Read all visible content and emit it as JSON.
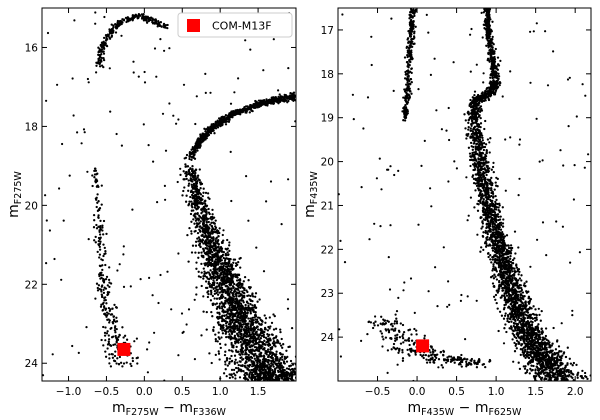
{
  "chart_data": [
    {
      "type": "scatter",
      "xlabel": {
        "main": "m",
        "sub1": "F275W",
        "minus": " − ",
        "main2": "m",
        "sub2": "F336W"
      },
      "ylabel": {
        "main": "m",
        "sub": "F275W"
      },
      "xlim": [
        -1.35,
        2.0
      ],
      "ylim": [
        24.45,
        15.0
      ],
      "y_inverted": true,
      "xticks": [
        -1.0,
        -0.5,
        0.0,
        0.5,
        1.0,
        1.5
      ],
      "xtick_labels": [
        "−1.0",
        "−0.5",
        "0.0",
        "0.5",
        "1.0",
        "1.5"
      ],
      "yticks": [
        16,
        18,
        20,
        22,
        24
      ],
      "ytick_labels": [
        "16",
        "18",
        "20",
        "22",
        "24"
      ],
      "legend": {
        "label": "COM-M13F",
        "placement": "top-right"
      },
      "highlight": {
        "name": "COM-M13F",
        "x": -0.27,
        "y": 23.65,
        "color": "#ff0000"
      },
      "series": [
        {
          "name": "",
          "role": "main-sequence",
          "color": "#000000",
          "points": [
            [
              0.6,
              19.0
            ],
            [
              0.7,
              19.8
            ],
            [
              0.8,
              20.5
            ],
            [
              0.9,
              21.1
            ],
            [
              1.0,
              21.6
            ],
            [
              1.1,
              22.1
            ],
            [
              1.2,
              22.6
            ],
            [
              1.3,
              23.0
            ],
            [
              1.4,
              23.4
            ],
            [
              1.5,
              23.8
            ],
            [
              1.6,
              24.2
            ],
            [
              1.7,
              24.45
            ]
          ],
          "width": [
            0.12,
            0.14,
            0.18,
            0.22,
            0.26,
            0.3,
            0.34,
            0.38,
            0.42,
            0.46,
            0.5,
            0.55
          ]
        },
        {
          "name": "",
          "role": "subgiant-branch",
          "color": "#000000",
          "points": [
            [
              0.6,
              18.8
            ],
            [
              0.75,
              18.3
            ],
            [
              0.95,
              17.95
            ],
            [
              1.2,
              17.65
            ],
            [
              1.5,
              17.45
            ],
            [
              1.8,
              17.3
            ],
            [
              2.0,
              17.25
            ]
          ],
          "width": [
            0.06,
            0.06,
            0.05,
            0.05,
            0.05,
            0.05,
            0.05
          ]
        },
        {
          "name": "",
          "role": "horizontal-branch",
          "color": "#000000",
          "points": [
            [
              -0.6,
              16.5
            ],
            [
              -0.55,
              16.0
            ],
            [
              -0.45,
              15.6
            ],
            [
              -0.3,
              15.35
            ],
            [
              -0.1,
              15.2
            ],
            [
              0.1,
              15.3
            ],
            [
              0.3,
              15.5
            ]
          ],
          "width": [
            0.05,
            0.05,
            0.05,
            0.04,
            0.04,
            0.04,
            0.04
          ]
        },
        {
          "name": "",
          "role": "white-dwarf-sequence",
          "color": "#000000",
          "points": [
            [
              -0.65,
              19.0
            ],
            [
              -0.6,
              20.5
            ],
            [
              -0.55,
              21.8
            ],
            [
              -0.5,
              22.6
            ],
            [
              -0.42,
              23.1
            ],
            [
              -0.35,
              23.6
            ],
            [
              -0.25,
              24.1
            ]
          ],
          "width": [
            0.05,
            0.07,
            0.09,
            0.12,
            0.16,
            0.22,
            0.28
          ]
        }
      ]
    },
    {
      "type": "scatter",
      "xlabel": {
        "main": "m",
        "sub1": "F435W",
        "minus": " − ",
        "main2": "m",
        "sub2": "F625W"
      },
      "ylabel": {
        "main": "m",
        "sub": "F435W"
      },
      "xlim": [
        -1.0,
        2.2
      ],
      "ylim": [
        25.0,
        16.5
      ],
      "y_inverted": true,
      "xticks": [
        -0.5,
        0.0,
        0.5,
        1.0,
        1.5,
        2.0
      ],
      "xtick_labels": [
        "−0.5",
        "0.0",
        "0.5",
        "1.0",
        "1.5",
        "2.0"
      ],
      "yticks": [
        17,
        18,
        19,
        20,
        21,
        22,
        23,
        24
      ],
      "ytick_labels": [
        "17",
        "18",
        "19",
        "20",
        "21",
        "22",
        "23",
        "24"
      ],
      "highlight": {
        "name": "COM-M13F",
        "x": 0.07,
        "y": 24.2,
        "color": "#ff0000"
      },
      "series": [
        {
          "name": "",
          "role": "main-sequence",
          "color": "#000000",
          "points": [
            [
              0.72,
              19.0
            ],
            [
              0.78,
              19.8
            ],
            [
              0.85,
              20.5
            ],
            [
              0.93,
              21.2
            ],
            [
              1.02,
              21.9
            ],
            [
              1.12,
              22.5
            ],
            [
              1.22,
              23.1
            ],
            [
              1.35,
              23.7
            ],
            [
              1.5,
              24.2
            ],
            [
              1.65,
              24.6
            ],
            [
              1.8,
              25.0
            ]
          ],
          "width": [
            0.12,
            0.13,
            0.14,
            0.15,
            0.16,
            0.18,
            0.2,
            0.24,
            0.28,
            0.32,
            0.36
          ]
        },
        {
          "name": "",
          "role": "red-giant-branch",
          "color": "#000000",
          "points": [
            [
              0.72,
              19.0
            ],
            [
              0.75,
              18.6
            ],
            [
              0.9,
              18.45
            ],
            [
              1.0,
              18.2
            ],
            [
              0.95,
              17.6
            ],
            [
              0.9,
              17.0
            ],
            [
              0.88,
              16.5
            ]
          ],
          "width": [
            0.08,
            0.08,
            0.08,
            0.06,
            0.05,
            0.05,
            0.05
          ]
        },
        {
          "name": "",
          "role": "blue-horizontal-branch",
          "color": "#000000",
          "points": [
            [
              -0.05,
              16.5
            ],
            [
              -0.08,
              17.2
            ],
            [
              -0.1,
              17.8
            ],
            [
              -0.12,
              18.5
            ],
            [
              -0.15,
              19.0
            ]
          ],
          "width": [
            0.04,
            0.05,
            0.05,
            0.04,
            0.03
          ]
        },
        {
          "name": "",
          "role": "faint-blue-field",
          "color": "#000000",
          "points": [
            [
              -0.4,
              23.6
            ],
            [
              -0.1,
              24.2
            ],
            [
              0.3,
              24.5
            ],
            [
              0.7,
              24.6
            ]
          ],
          "width": [
            0.3,
            0.35,
            0.4,
            0.4
          ]
        }
      ]
    }
  ]
}
